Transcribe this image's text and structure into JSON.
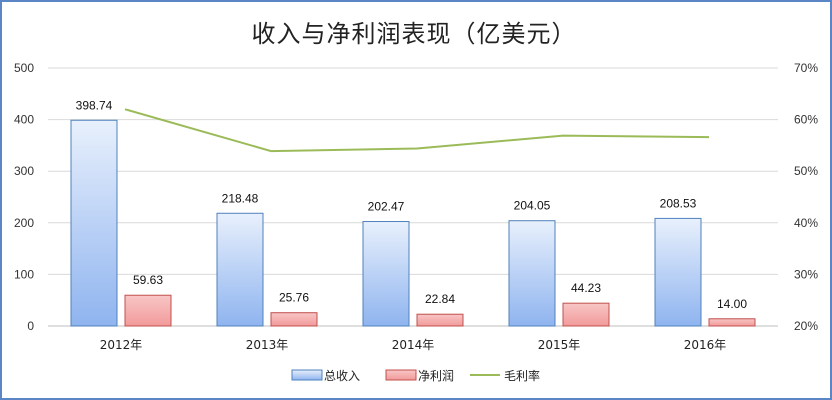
{
  "chart_data": {
    "type": "bar",
    "title": "收入与净利润表现（亿美元）",
    "categories": [
      "2012年",
      "2013年",
      "2014年",
      "2015年",
      "2016年"
    ],
    "series": [
      {
        "name": "总收入",
        "kind": "bar",
        "axis": "left",
        "values": [
          398.74,
          218.48,
          202.47,
          204.05,
          208.53
        ],
        "labels": [
          "398.74",
          "218.48",
          "202.47",
          "204.05",
          "208.53"
        ],
        "color": "#8fb4ef"
      },
      {
        "name": "净利润",
        "kind": "bar",
        "axis": "left",
        "values": [
          59.63,
          25.76,
          22.84,
          44.23,
          14.0
        ],
        "labels": [
          "59.63",
          "25.76",
          "22.84",
          "44.23",
          "14.00"
        ],
        "color": "#f4a6a6"
      },
      {
        "name": "毛利率",
        "kind": "line",
        "axis": "right",
        "values": [
          62,
          53.9,
          54.4,
          56.9,
          56.6
        ],
        "color": "#9bbb59"
      }
    ],
    "y_left": {
      "ylim": [
        0,
        500
      ],
      "ticks": [
        "0",
        "100",
        "200",
        "300",
        "400",
        "500"
      ]
    },
    "y_right": {
      "ylim": [
        20,
        70
      ],
      "ticks": [
        "20%",
        "30%",
        "40%",
        "50%",
        "60%",
        "70%"
      ]
    },
    "grid": true,
    "legend": "bottom"
  }
}
